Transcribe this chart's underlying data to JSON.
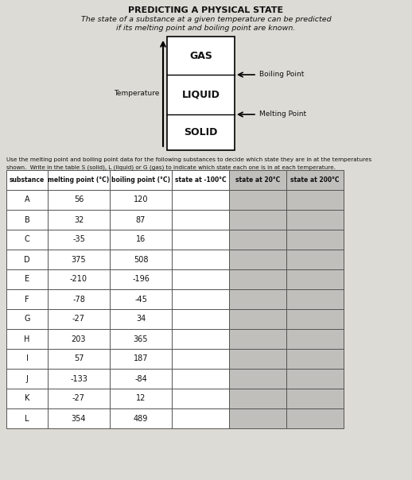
{
  "title": "PREDICTING A PHYSICAL STATE",
  "subtitle_line1": "The state of a substance at a given temperature can be predicted",
  "subtitle_line2": "if its melting point and boiling point are known.",
  "arrow_label": "Temperature",
  "boiling_label": "Boiling Point",
  "melting_label": "Melting Point",
  "state_gas": "GAS",
  "state_liquid": "LIQUID",
  "state_solid": "SOLID",
  "instruction_line1": "Use the melting point and boiling point data for the following substances to decide which state they are in at the temperatures",
  "instruction_line2": "shown.  Write in the table S (solid), L (liquid) or G (gas) to indicate which state each one is in at each temperature.",
  "headers": [
    "substance",
    "melting point (°C)",
    "boiling point (°C)",
    "state at -100°C",
    "state at 20°C",
    "state at 200°C"
  ],
  "rows": [
    [
      "A",
      "56",
      "120"
    ],
    [
      "B",
      "32",
      "87"
    ],
    [
      "C",
      "-35",
      "16"
    ],
    [
      "D",
      "375",
      "508"
    ],
    [
      "E",
      "-210",
      "-196"
    ],
    [
      "F",
      "-78",
      "-45"
    ],
    [
      "G",
      "-27",
      "34"
    ],
    [
      "H",
      "203",
      "365"
    ],
    [
      "I",
      "57",
      "187"
    ],
    [
      "J",
      "-133",
      "-84"
    ],
    [
      "K",
      "-27",
      "12"
    ],
    [
      "L",
      "354",
      "489"
    ]
  ],
  "paper_color": "#dddbd5",
  "white": "#ffffff",
  "shaded_col_bg": "#c0bfbc",
  "text_color": "#111111"
}
